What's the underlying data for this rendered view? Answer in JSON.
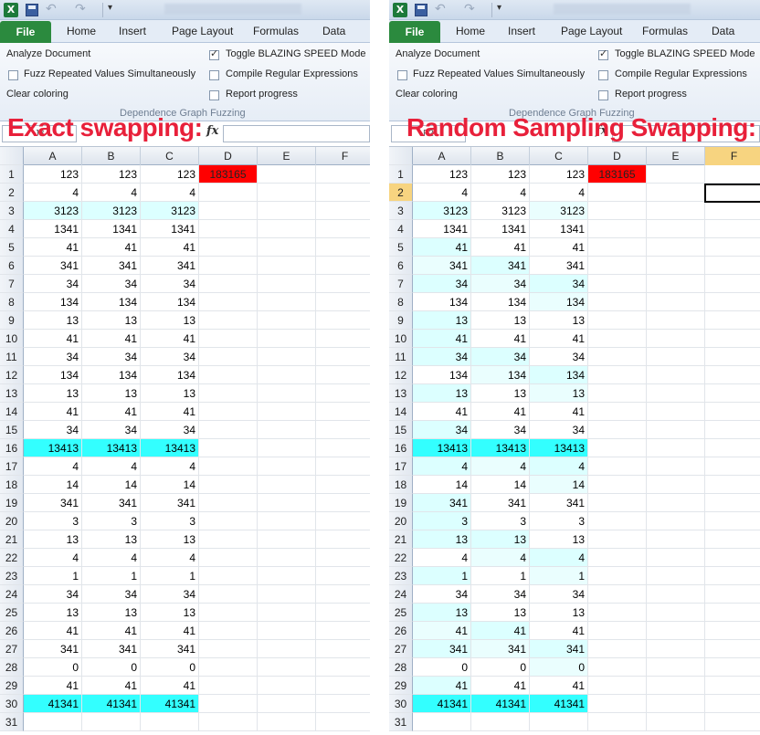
{
  "colors": {
    "file_tab": "#2b8a3e",
    "overlay_text": "#e8203a",
    "result_cell": "#ff0000",
    "hl_strong": "#33ffff",
    "hl_light": "#dcffff",
    "hl_lighter": "#eafefe"
  },
  "quick_access": {
    "app_icon": "X"
  },
  "tabs": {
    "file": "File",
    "home": "Home",
    "insert": "Insert",
    "page_layout": "Page Layout",
    "formulas": "Formulas",
    "data": "Data"
  },
  "ribbon": {
    "analyze": "Analyze Document",
    "fuzz": "Fuzz Repeated Values Simultaneously",
    "clear": "Clear coloring",
    "toggle": "Toggle BLAZING SPEED Mode",
    "compile": "Compile Regular Expressions",
    "report": "Report progress",
    "group": "Dependence Graph  Fuzzing"
  },
  "formula_bar": {
    "fx": "fx"
  },
  "left": {
    "overlay": "Exact swapping:",
    "namebox": "J3"
  },
  "right": {
    "overlay": "Random Sampling Swapping:",
    "namebox": "F2"
  },
  "columns_left": [
    "A",
    "B",
    "C",
    "D",
    "E",
    "F"
  ],
  "columns_right": [
    "A",
    "B",
    "C",
    "D",
    "E",
    "F"
  ],
  "sheet": {
    "result": "183165",
    "rows": [
      [
        "123",
        "123",
        "123"
      ],
      [
        "4",
        "4",
        "4"
      ],
      [
        "3123",
        "3123",
        "3123"
      ],
      [
        "1341",
        "1341",
        "1341"
      ],
      [
        "41",
        "41",
        "41"
      ],
      [
        "341",
        "341",
        "341"
      ],
      [
        "34",
        "34",
        "34"
      ],
      [
        "134",
        "134",
        "134"
      ],
      [
        "13",
        "13",
        "13"
      ],
      [
        "41",
        "41",
        "41"
      ],
      [
        "34",
        "34",
        "34"
      ],
      [
        "134",
        "134",
        "134"
      ],
      [
        "13",
        "13",
        "13"
      ],
      [
        "41",
        "41",
        "41"
      ],
      [
        "34",
        "34",
        "34"
      ],
      [
        "13413",
        "13413",
        "13413"
      ],
      [
        "4",
        "4",
        "4"
      ],
      [
        "14",
        "14",
        "14"
      ],
      [
        "341",
        "341",
        "341"
      ],
      [
        "3",
        "3",
        "3"
      ],
      [
        "13",
        "13",
        "13"
      ],
      [
        "4",
        "4",
        "4"
      ],
      [
        "1",
        "1",
        "1"
      ],
      [
        "34",
        "34",
        "34"
      ],
      [
        "13",
        "13",
        "13"
      ],
      [
        "41",
        "41",
        "41"
      ],
      [
        "341",
        "341",
        "341"
      ],
      [
        "0",
        "0",
        "0"
      ],
      [
        "41",
        "41",
        "41"
      ],
      [
        "41341",
        "41341",
        "41341"
      ],
      [
        "",
        "",
        ""
      ]
    ]
  }
}
